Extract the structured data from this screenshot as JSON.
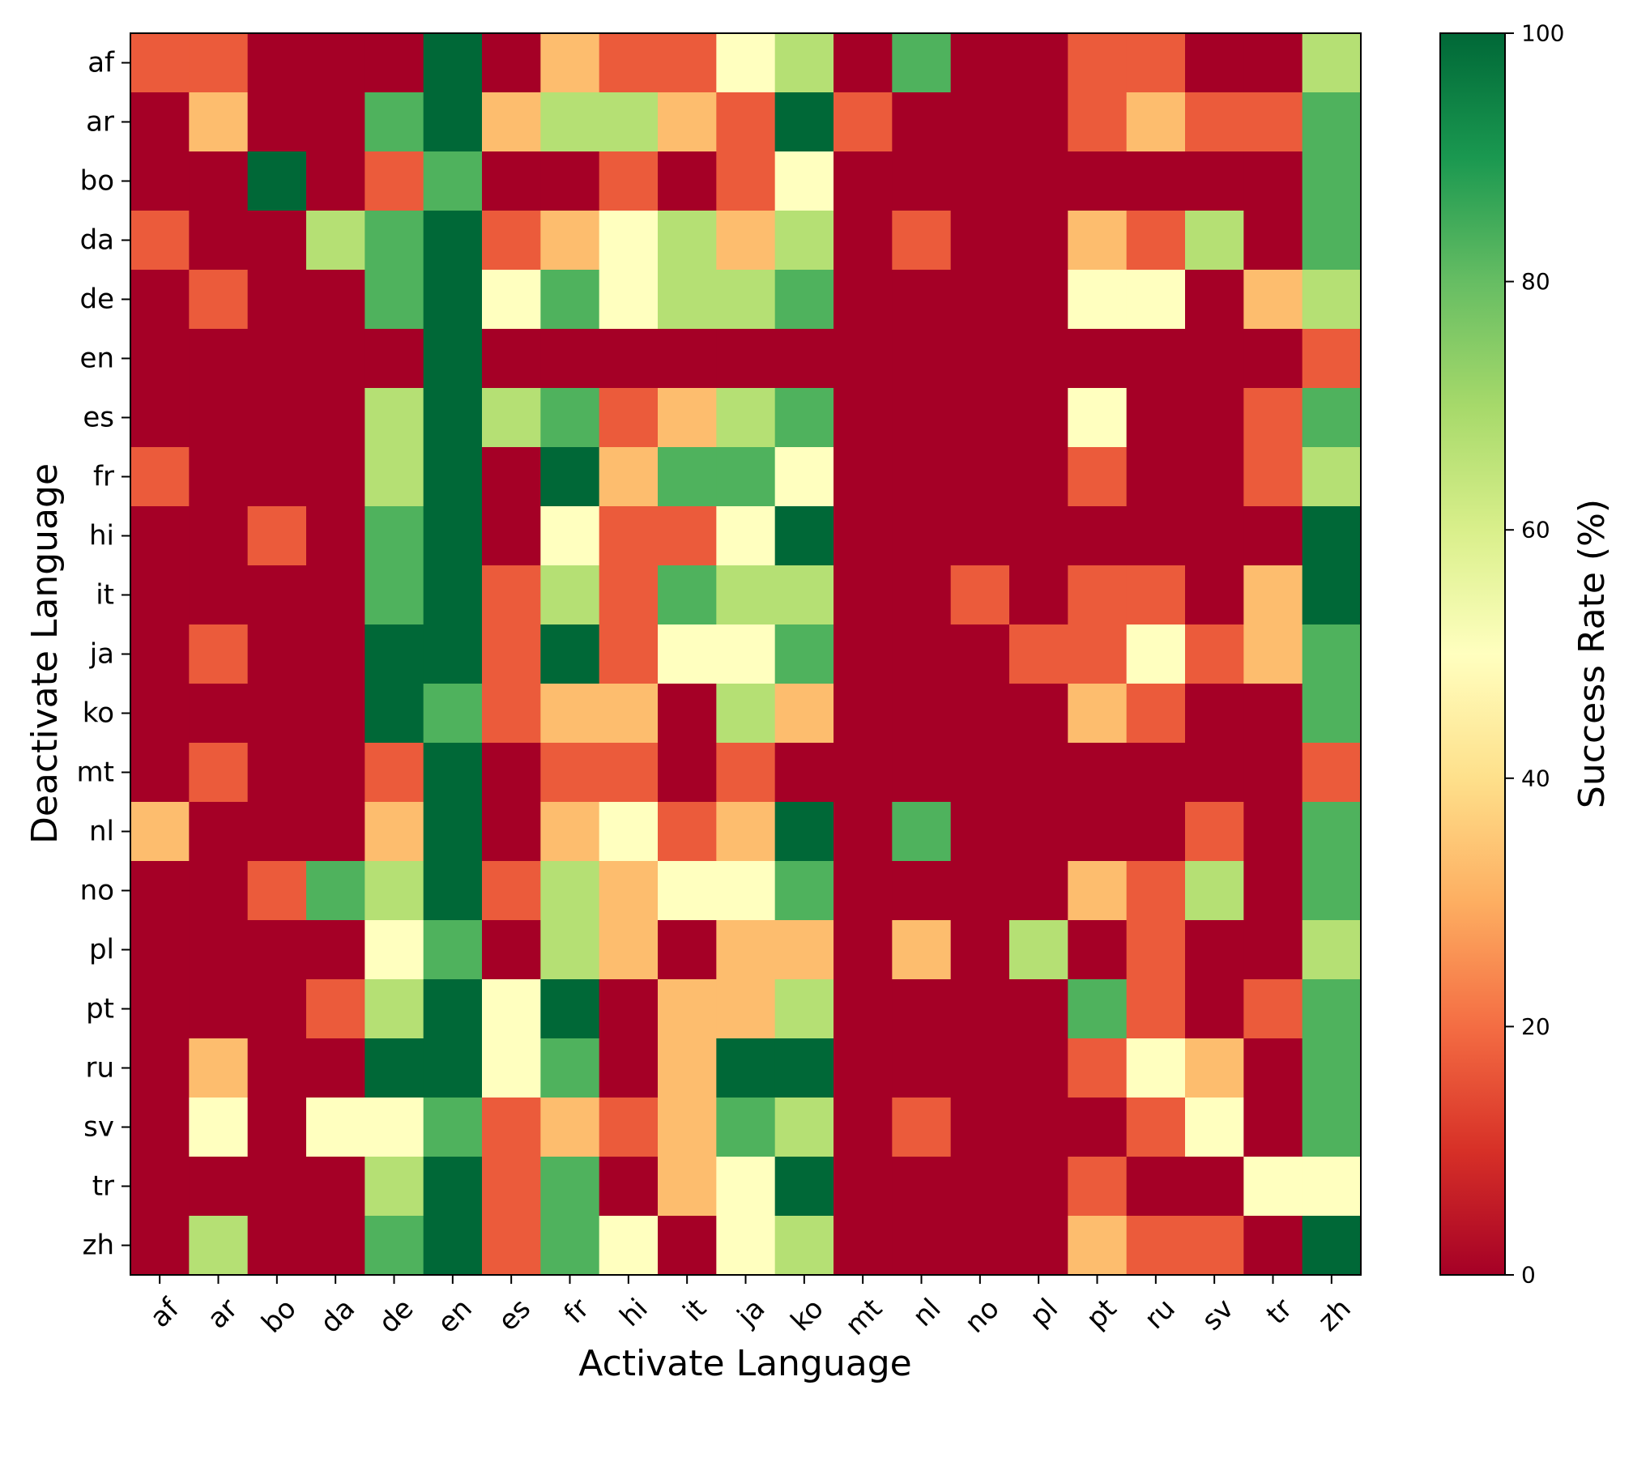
{
  "chart_data": {
    "type": "heatmap",
    "xlabel": "Activate Language",
    "ylabel": "Deactivate Language",
    "x_categories": [
      "af",
      "ar",
      "bo",
      "da",
      "de",
      "en",
      "es",
      "fr",
      "hi",
      "it",
      "ja",
      "ko",
      "mt",
      "nl",
      "no",
      "pl",
      "pt",
      "ru",
      "sv",
      "tr",
      "zh"
    ],
    "y_categories": [
      "af",
      "ar",
      "bo",
      "da",
      "de",
      "en",
      "es",
      "fr",
      "hi",
      "it",
      "ja",
      "ko",
      "mt",
      "nl",
      "no",
      "pl",
      "pt",
      "ru",
      "sv",
      "tr",
      "zh"
    ],
    "values": [
      [
        17,
        17,
        0,
        0,
        0,
        100,
        0,
        33,
        17,
        17,
        50,
        67,
        0,
        83,
        0,
        0,
        17,
        17,
        0,
        0,
        67
      ],
      [
        0,
        33,
        0,
        0,
        83,
        100,
        33,
        67,
        67,
        33,
        17,
        100,
        17,
        0,
        0,
        0,
        17,
        33,
        17,
        17,
        83
      ],
      [
        0,
        0,
        100,
        0,
        17,
        83,
        0,
        0,
        17,
        0,
        17,
        50,
        0,
        0,
        0,
        0,
        0,
        0,
        0,
        0,
        83
      ],
      [
        17,
        0,
        0,
        67,
        83,
        100,
        17,
        33,
        50,
        67,
        33,
        67,
        0,
        17,
        0,
        0,
        33,
        17,
        67,
        0,
        83
      ],
      [
        0,
        17,
        0,
        0,
        83,
        100,
        50,
        83,
        50,
        67,
        67,
        83,
        0,
        0,
        0,
        0,
        50,
        50,
        0,
        33,
        67
      ],
      [
        0,
        0,
        0,
        0,
        0,
        100,
        0,
        0,
        0,
        0,
        0,
        0,
        0,
        0,
        0,
        0,
        0,
        0,
        0,
        0,
        17
      ],
      [
        0,
        0,
        0,
        0,
        67,
        100,
        67,
        83,
        17,
        33,
        67,
        83,
        0,
        0,
        0,
        0,
        50,
        0,
        0,
        17,
        83
      ],
      [
        17,
        0,
        0,
        0,
        67,
        100,
        0,
        100,
        33,
        83,
        83,
        50,
        0,
        0,
        0,
        0,
        17,
        0,
        0,
        17,
        67
      ],
      [
        0,
        0,
        17,
        0,
        83,
        100,
        0,
        50,
        17,
        17,
        50,
        100,
        0,
        0,
        0,
        0,
        0,
        0,
        0,
        0,
        100
      ],
      [
        0,
        0,
        0,
        0,
        83,
        100,
        17,
        67,
        17,
        83,
        67,
        67,
        0,
        0,
        17,
        0,
        17,
        17,
        0,
        33,
        100
      ],
      [
        0,
        17,
        0,
        0,
        100,
        100,
        17,
        100,
        17,
        50,
        50,
        83,
        0,
        0,
        0,
        17,
        17,
        50,
        17,
        33,
        83
      ],
      [
        0,
        0,
        0,
        0,
        100,
        83,
        17,
        33,
        33,
        0,
        67,
        33,
        0,
        0,
        0,
        0,
        33,
        17,
        0,
        0,
        83
      ],
      [
        0,
        17,
        0,
        0,
        17,
        100,
        0,
        17,
        17,
        0,
        17,
        0,
        0,
        0,
        0,
        0,
        0,
        0,
        0,
        0,
        17
      ],
      [
        33,
        0,
        0,
        0,
        33,
        100,
        0,
        33,
        50,
        17,
        33,
        100,
        0,
        83,
        0,
        0,
        0,
        0,
        17,
        0,
        83
      ],
      [
        0,
        0,
        17,
        83,
        67,
        100,
        17,
        67,
        33,
        50,
        50,
        83,
        0,
        0,
        0,
        0,
        33,
        17,
        67,
        0,
        83
      ],
      [
        0,
        0,
        0,
        0,
        50,
        83,
        0,
        67,
        33,
        0,
        33,
        33,
        0,
        33,
        0,
        67,
        0,
        17,
        0,
        0,
        67
      ],
      [
        0,
        0,
        0,
        17,
        67,
        100,
        50,
        100,
        0,
        33,
        33,
        67,
        0,
        0,
        0,
        0,
        83,
        17,
        0,
        17,
        83
      ],
      [
        0,
        33,
        0,
        0,
        100,
        100,
        50,
        83,
        0,
        33,
        100,
        100,
        0,
        0,
        0,
        0,
        17,
        50,
        33,
        0,
        83
      ],
      [
        0,
        50,
        0,
        50,
        50,
        83,
        17,
        33,
        17,
        33,
        83,
        67,
        0,
        17,
        0,
        0,
        0,
        17,
        50,
        0,
        83
      ],
      [
        0,
        0,
        0,
        0,
        67,
        100,
        17,
        83,
        0,
        33,
        50,
        100,
        0,
        0,
        0,
        0,
        17,
        0,
        0,
        50,
        50
      ],
      [
        0,
        67,
        0,
        0,
        83,
        100,
        17,
        83,
        50,
        0,
        50,
        67,
        0,
        0,
        0,
        0,
        33,
        17,
        17,
        0,
        100
      ]
    ],
    "colorbar": {
      "label": "Success Rate (%)",
      "range": [
        0,
        100
      ],
      "ticks": [
        "0",
        "20",
        "40",
        "60",
        "80",
        "100"
      ],
      "colormap": "RdYlGn"
    }
  }
}
